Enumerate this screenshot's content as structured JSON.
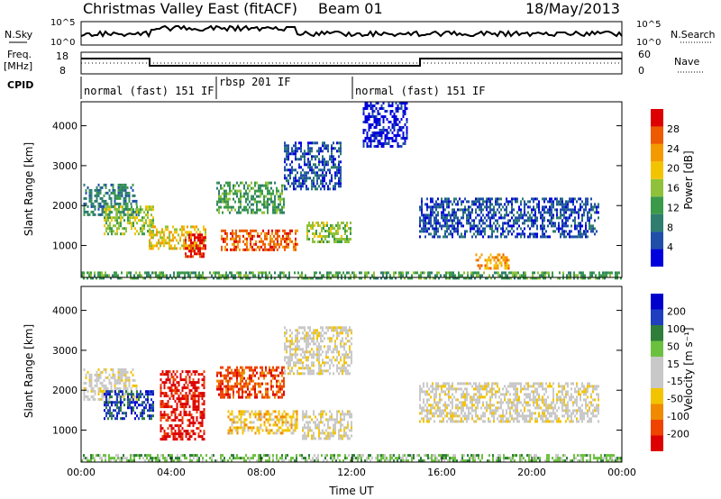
{
  "header": {
    "title": "Christmas Valley East (fitACF)",
    "beam": "Beam 01",
    "date": "18/May/2013"
  },
  "noise_panel": {
    "left_label": "N.Sky",
    "right_label": "N.Search",
    "left_ticks": [
      "10^5",
      "10^0"
    ],
    "right_ticks": [
      "10^5",
      "10^0"
    ]
  },
  "freq_panel": {
    "left_label_line1": "Freq.",
    "left_label_line2": "[MHz]",
    "right_label": "Nave",
    "left_ticks": [
      "18",
      "8"
    ],
    "right_ticks": [
      "60",
      "0"
    ]
  },
  "cpid": {
    "label": "CPID",
    "segments": [
      {
        "text": "normal (fast) 151 IF",
        "start_hour": 0
      },
      {
        "text": "rbsp 201 IF",
        "start_hour": 6
      },
      {
        "text": "normal (fast) 151 IF",
        "start_hour": 12.1
      }
    ]
  },
  "chart_data": [
    {
      "type": "heatmap",
      "name": "Power",
      "ylabel": "Slant Range [km]",
      "yticks": [
        "1000",
        "2000",
        "3000",
        "4000"
      ],
      "ylim": [
        200,
        4600
      ],
      "xlim": [
        0,
        24
      ],
      "colorbar": {
        "label": "Power [dB]",
        "ticks": [
          "4",
          "8",
          "12",
          "16",
          "20",
          "24",
          "28"
        ],
        "colors": [
          "#0000dd",
          "#1f4fa8",
          "#2e7d6e",
          "#3a9a4a",
          "#8fc23a",
          "#f2c400",
          "#f39a00",
          "#ee5a00",
          "#dd0000"
        ]
      },
      "regions": [
        {
          "t0": 0.1,
          "t1": 2.5,
          "r0": 1800,
          "r1": 2550,
          "level": 2
        },
        {
          "t0": 1.0,
          "t1": 3.2,
          "r0": 1300,
          "r1": 2000,
          "level": 4
        },
        {
          "t0": 3.0,
          "t1": 5.5,
          "r0": 900,
          "r1": 1500,
          "level": 5
        },
        {
          "t0": 4.6,
          "t1": 5.5,
          "r0": 700,
          "r1": 1300,
          "level": 8
        },
        {
          "t0": 6.0,
          "t1": 9.0,
          "r0": 1800,
          "r1": 2600,
          "level": 3
        },
        {
          "t0": 6.2,
          "t1": 9.6,
          "r0": 900,
          "r1": 1400,
          "level": 7
        },
        {
          "t0": 9.0,
          "t1": 11.5,
          "r0": 2400,
          "r1": 3600,
          "level": 1
        },
        {
          "t0": 10.0,
          "t1": 12.0,
          "r0": 1100,
          "r1": 1600,
          "level": 4
        },
        {
          "t0": 12.5,
          "t1": 14.5,
          "r0": 3500,
          "r1": 4600,
          "level": 0
        },
        {
          "t0": 15.0,
          "t1": 23.0,
          "r0": 1200,
          "r1": 2200,
          "level": 1
        },
        {
          "t0": 17.5,
          "t1": 19.0,
          "r0": 400,
          "r1": 800,
          "level": 6
        },
        {
          "t0": 0.0,
          "t1": 24.0,
          "r0": 200,
          "r1": 350,
          "level": 3
        }
      ]
    },
    {
      "type": "heatmap",
      "name": "Velocity",
      "ylabel": "Slant Range [km]",
      "xlabel": "Time UT",
      "xticks": [
        "00:00",
        "04:00",
        "08:00",
        "12:00",
        "16:00",
        "20:00",
        "00:00"
      ],
      "yticks": [
        "1000",
        "2000",
        "3000",
        "4000"
      ],
      "ylim": [
        200,
        4600
      ],
      "xlim": [
        0,
        24
      ],
      "colorbar": {
        "label": "Velocity [m s⁻¹]",
        "ticks": [
          "200",
          "100",
          "50",
          "15",
          "-15",
          "-50",
          "-100",
          "-200"
        ],
        "colors": [
          "#0000cc",
          "#1f3fbf",
          "#2e7d3a",
          "#6cc040",
          "#c8c8c8",
          "#c8c8c8",
          "#f2c400",
          "#f08a00",
          "#ee4400",
          "#dd0000"
        ]
      },
      "regions": [
        {
          "t0": 0.1,
          "t1": 2.5,
          "r0": 1800,
          "r1": 2550,
          "level": 4
        },
        {
          "t0": 1.0,
          "t1": 3.2,
          "r0": 1300,
          "r1": 2000,
          "level": 8
        },
        {
          "t0": 3.5,
          "t1": 5.5,
          "r0": 800,
          "r1": 2500,
          "level": 0
        },
        {
          "t0": 6.0,
          "t1": 9.0,
          "r0": 1800,
          "r1": 2600,
          "level": 1
        },
        {
          "t0": 6.5,
          "t1": 9.6,
          "r0": 900,
          "r1": 1500,
          "level": 3
        },
        {
          "t0": 9.0,
          "t1": 12.0,
          "r0": 2400,
          "r1": 3600,
          "level": 4
        },
        {
          "t0": 9.8,
          "t1": 12.0,
          "r0": 800,
          "r1": 1500,
          "level": 4
        },
        {
          "t0": 15.0,
          "t1": 23.0,
          "r0": 1200,
          "r1": 2200,
          "level": 4
        },
        {
          "t0": 0.0,
          "t1": 24.0,
          "r0": 200,
          "r1": 400,
          "level": 6
        }
      ]
    }
  ]
}
